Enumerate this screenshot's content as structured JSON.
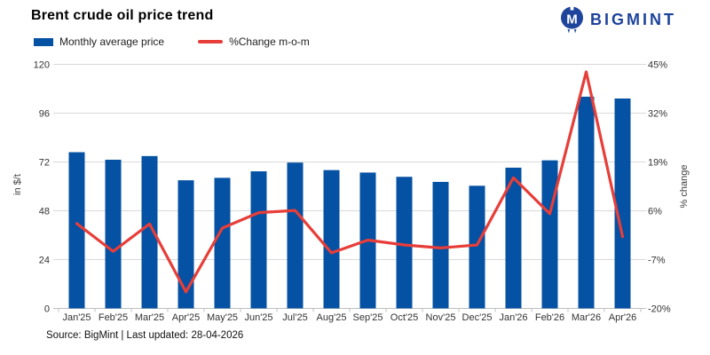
{
  "title": "Brent crude oil price trend",
  "logo": {
    "text": "BIGMINT",
    "color": "#1e449b"
  },
  "legend": {
    "bar_label": "Monthly average price",
    "line_label": "%Change m-o-m"
  },
  "footer": {
    "source": "Source: BigMint | Last updated: 28-04-2026"
  },
  "colors": {
    "bar": "#0551a3",
    "line": "#e73e39",
    "grid": "#d9d9d9",
    "axis_line": "#bfbfbf",
    "tick_text": "#333333",
    "logo_blue": "#1e449b"
  },
  "chart_data": {
    "type": "bar",
    "subtype": "bar+line dual axis",
    "title": "Brent crude oil price trend",
    "categories": [
      "Jan'25",
      "Feb'25",
      "Mar'25",
      "Apr'25",
      "May'25",
      "Jun'25",
      "Jul'25",
      "Aug'25",
      "Sep'25",
      "Oct'25",
      "Nov'25",
      "Dec'25",
      "Jan'26",
      "Feb'26",
      "Mar'26",
      "Apr'26"
    ],
    "series": [
      {
        "name": "Monthly average price",
        "type": "bar",
        "axis": "left",
        "values": [
          76.8,
          73.1,
          74.9,
          63.0,
          64.2,
          67.4,
          71.7,
          68.0,
          66.8,
          64.7,
          62.2,
          60.3,
          69.2,
          72.8,
          104.1,
          103.2
        ]
      },
      {
        "name": "%Change m-o-m",
        "type": "line",
        "axis": "right",
        "values": [
          2.6,
          -4.8,
          2.5,
          -15.6,
          1.4,
          5.5,
          6.1,
          -5.2,
          -1.8,
          -3.1,
          -3.9,
          -3.1,
          14.8,
          5.2,
          43.0,
          -0.9
        ]
      }
    ],
    "xlabel": "",
    "ylabel_left": "in $/t",
    "ylabel_right": "% change",
    "ylim_left": [
      0,
      120
    ],
    "yticks_left": [
      0,
      24,
      48,
      72,
      96,
      120
    ],
    "ylim_right": [
      -20,
      45
    ],
    "yticks_right": [
      -20,
      -7,
      6,
      19,
      32,
      45
    ],
    "right_tick_suffix": "%",
    "grid": "horizontal",
    "legend_position": "top-left"
  }
}
